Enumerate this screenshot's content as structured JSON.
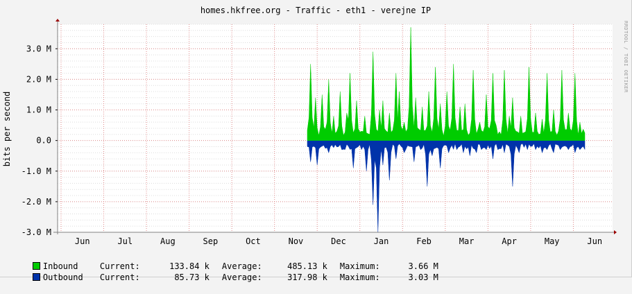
{
  "chart_data": {
    "type": "area",
    "title": "homes.hkfree.org - Traffic - eth1 - verejne IP",
    "ylabel": "bits per second",
    "watermark": "RRDTOOL / TOBI OETIKER",
    "x_ticks": [
      "Jun",
      "Jul",
      "Aug",
      "Sep",
      "Oct",
      "Nov",
      "Dec",
      "Jan",
      "Feb",
      "Mar",
      "Apr",
      "May",
      "Jun"
    ],
    "y_ticks": [
      "3.0 M",
      "2.0 M",
      "1.0 M",
      "0.0",
      "-1.0 M",
      "-2.0 M",
      "-3.0 M"
    ],
    "ylim": [
      -3000000,
      3800000
    ],
    "grid": true,
    "colors": {
      "inbound": "#00cc00",
      "outbound": "#0033aa",
      "grid_major": "#e08a8a",
      "grid_minor": "#dcdcdc",
      "axis": "#808080",
      "arrow": "#9b0000"
    },
    "series": [
      {
        "name": "Inbound",
        "color": "#00cc00",
        "peaks": [
          [
            1.5,
            2.5
          ],
          [
            4,
            1.4
          ],
          [
            7,
            1.5
          ],
          [
            10,
            2.0
          ],
          [
            13,
            0.8
          ],
          [
            16,
            1.6
          ],
          [
            19,
            0.9
          ],
          [
            21,
            2.2
          ],
          [
            24,
            1.3
          ],
          [
            28,
            0.8
          ],
          [
            32,
            2.9
          ],
          [
            35,
            1.0
          ],
          [
            37,
            1.3
          ],
          [
            40,
            0.9
          ],
          [
            43,
            2.2
          ],
          [
            45,
            1.6
          ],
          [
            47,
            0.6
          ],
          [
            50,
            3.7
          ],
          [
            53,
            1.4
          ],
          [
            56,
            1.1
          ],
          [
            59,
            1.6
          ],
          [
            62,
            2.4
          ],
          [
            65,
            1.2
          ],
          [
            68,
            1.6
          ],
          [
            71,
            2.5
          ],
          [
            74,
            1.1
          ],
          [
            77,
            1.2
          ],
          [
            81,
            2.3
          ],
          [
            84,
            0.6
          ],
          [
            87,
            1.5
          ],
          [
            90,
            2.2
          ],
          [
            92,
            0.5
          ],
          [
            96,
            2.3
          ],
          [
            98,
            0.8
          ],
          [
            100,
            1.4
          ],
          [
            104,
            0.8
          ],
          [
            108,
            2.4
          ],
          [
            111,
            0.9
          ],
          [
            114,
            0.7
          ],
          [
            117,
            2.2
          ],
          [
            120,
            1.0
          ],
          [
            124,
            2.3
          ],
          [
            127,
            0.9
          ],
          [
            130,
            2.2
          ],
          [
            133,
            0.6
          ]
        ]
      },
      {
        "name": "Outbound",
        "color": "#0033aa",
        "peaks": [
          [
            1.5,
            0.7
          ],
          [
            5,
            0.8
          ],
          [
            10,
            0.4
          ],
          [
            17,
            0.3
          ],
          [
            22,
            0.9
          ],
          [
            25,
            0.2
          ],
          [
            29,
            1.0
          ],
          [
            32,
            2.1
          ],
          [
            34,
            3.0
          ],
          [
            37,
            0.8
          ],
          [
            40,
            1.3
          ],
          [
            43,
            0.6
          ],
          [
            47,
            0.4
          ],
          [
            52,
            0.7
          ],
          [
            55,
            0.3
          ],
          [
            58,
            1.5
          ],
          [
            61,
            0.5
          ],
          [
            65,
            0.9
          ],
          [
            69,
            0.4
          ],
          [
            73,
            0.3
          ],
          [
            76,
            0.4
          ],
          [
            79,
            0.5
          ],
          [
            82,
            0.4
          ],
          [
            85,
            0.3
          ],
          [
            87,
            0.3
          ],
          [
            90,
            0.6
          ],
          [
            93,
            0.3
          ],
          [
            96,
            0.4
          ],
          [
            99,
            0.3
          ],
          [
            100,
            1.5
          ],
          [
            103,
            0.4
          ],
          [
            107,
            0.3
          ],
          [
            111,
            0.3
          ],
          [
            114,
            0.4
          ],
          [
            117,
            0.3
          ],
          [
            120,
            0.4
          ],
          [
            123,
            0.3
          ],
          [
            127,
            0.3
          ],
          [
            130,
            0.4
          ],
          [
            133,
            0.3
          ]
        ]
      }
    ],
    "data_start_fraction": 0.45,
    "data_end_fraction": 0.95
  },
  "legend": {
    "rows": [
      {
        "name": "Inbound",
        "current_label": "Current:",
        "current": "133.84 k",
        "average_label": "Average:",
        "average": "485.13 k",
        "maximum_label": "Maximum:",
        "maximum": "3.66 M"
      },
      {
        "name": "Outbound",
        "current_label": "Current:",
        "current": "85.73 k",
        "average_label": "Average:",
        "average": "317.98 k",
        "maximum_label": "Maximum:",
        "maximum": "3.03 M"
      }
    ]
  }
}
